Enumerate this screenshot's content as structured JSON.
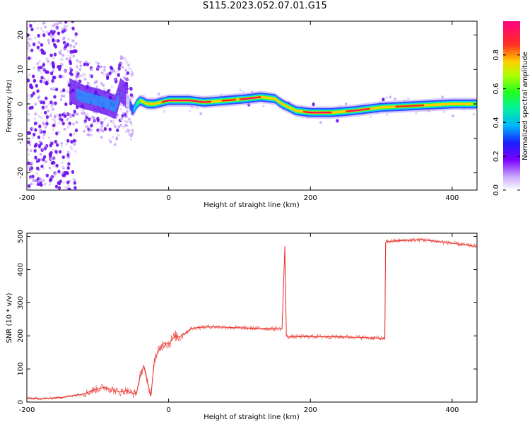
{
  "title": "S115.2023.052.07.01.G15",
  "colors": {
    "snr_line": "#e8322a",
    "frame": "#000000"
  },
  "chart_data": [
    {
      "type": "heatmap",
      "name": "spectrogram",
      "xlabel": "Height of straight line (km)",
      "ylabel": "Frequency (Hz)",
      "xlim": [
        -200,
        435
      ],
      "ylim": [
        -25,
        24
      ],
      "xticks": [
        -200,
        0,
        200,
        400
      ],
      "yticks": [
        -20,
        -10,
        0,
        10,
        20
      ],
      "colorbar": {
        "label": "Normalized spectral amplitude",
        "range": [
          0,
          1
        ],
        "ticks": [
          0.0,
          0.2,
          0.4,
          0.6,
          0.8
        ],
        "colormap": [
          "#e8e8ff",
          "#8a2be2",
          "#3a00ff",
          "#00c8ff",
          "#00ff40",
          "#b0ff00",
          "#ffd000",
          "#ff2020",
          "#ff0090"
        ]
      },
      "ridge_center_hz": [
        [
          -140,
          4
        ],
        [
          -120,
          2
        ],
        [
          -100,
          1
        ],
        [
          -85,
          0
        ],
        [
          -75,
          -1
        ],
        [
          -68,
          4
        ],
        [
          -62,
          3
        ],
        [
          -55,
          0
        ],
        [
          -50,
          -2
        ],
        [
          -45,
          0
        ],
        [
          -40,
          1
        ],
        [
          -30,
          0
        ],
        [
          -20,
          0
        ],
        [
          0,
          1
        ],
        [
          30,
          1
        ],
        [
          50,
          0.5
        ],
        [
          80,
          1
        ],
        [
          110,
          1.5
        ],
        [
          130,
          2
        ],
        [
          150,
          1.5
        ],
        [
          160,
          0
        ],
        [
          170,
          -1
        ],
        [
          180,
          -2
        ],
        [
          200,
          -2.5
        ],
        [
          230,
          -2.5
        ],
        [
          260,
          -2
        ],
        [
          300,
          -1
        ],
        [
          350,
          -0.5
        ],
        [
          400,
          0
        ],
        [
          435,
          0
        ]
      ]
    },
    {
      "type": "line",
      "name": "snr",
      "xlabel": "Height of straight line (km)",
      "ylabel": "SNR (10 * v/v)",
      "xlim": [
        -200,
        435
      ],
      "ylim": [
        0,
        510
      ],
      "xticks": [
        -200,
        0,
        200,
        400
      ],
      "yticks": [
        0,
        100,
        200,
        300,
        400,
        500
      ],
      "x": [
        -200,
        -180,
        -150,
        -120,
        -100,
        -90,
        -80,
        -70,
        -60,
        -50,
        -45,
        -40,
        -35,
        -30,
        -25,
        -20,
        -15,
        -10,
        -5,
        0,
        5,
        10,
        15,
        20,
        25,
        30,
        40,
        60,
        80,
        100,
        120,
        140,
        160,
        164,
        166,
        167,
        168,
        200,
        250,
        300,
        305,
        306,
        307,
        330,
        360,
        400,
        435
      ],
      "y": [
        12,
        10,
        14,
        25,
        40,
        45,
        38,
        30,
        35,
        25,
        30,
        80,
        110,
        60,
        20,
        130,
        150,
        170,
        180,
        175,
        190,
        200,
        195,
        205,
        210,
        220,
        225,
        228,
        226,
        224,
        223,
        222,
        221,
        470,
        200,
        198,
        197,
        198,
        197,
        193,
        190,
        480,
        485,
        488,
        490,
        480,
        470
      ]
    }
  ]
}
